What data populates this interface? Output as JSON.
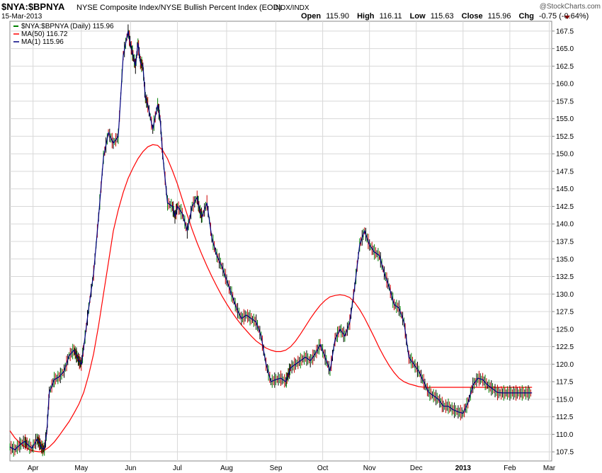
{
  "header": {
    "symbol": "$NYA:$BPNYA",
    "description": "NYSE Composite Index/NYSE Bullish Percent Index (EOD)",
    "exchange": "INDX/INDX",
    "date": "15-Mar-2013",
    "watermark": "@StockCharts.com",
    "ohlc": {
      "open_label": "Open",
      "open": "115.90",
      "high_label": "High",
      "high": "116.11",
      "low_label": "Low",
      "low": "115.63",
      "close_label": "Close",
      "close": "115.96",
      "chg_label": "Chg",
      "chg": "-0.75 (-0.64%)"
    }
  },
  "legend": [
    {
      "text": "$NYA:$BPNYA (Daily) 115.96",
      "color": "#008000"
    },
    {
      "text": "MA(50) 116.72",
      "color": "#ff0000"
    },
    {
      "text": "MA(1) 115.96",
      "color": "#000080"
    }
  ],
  "chart_data": {
    "type": "line",
    "ylim": [
      106.2,
      168.9
    ],
    "xlim": [
      0,
      11.0
    ],
    "y_ticks": [
      107.5,
      110.0,
      112.5,
      115.0,
      117.5,
      120.0,
      122.5,
      125.0,
      127.5,
      130.0,
      132.5,
      135.0,
      137.5,
      140.0,
      142.5,
      145.0,
      147.5,
      150.0,
      152.5,
      155.0,
      157.5,
      160.0,
      162.5,
      165.0,
      167.5
    ],
    "x_ticks": [
      {
        "label": "Apr",
        "x": 0.47,
        "bold": false
      },
      {
        "label": "May",
        "x": 1.45,
        "bold": false
      },
      {
        "label": "Jun",
        "x": 2.45,
        "bold": false
      },
      {
        "label": "Jul",
        "x": 3.4,
        "bold": false
      },
      {
        "label": "Aug",
        "x": 4.4,
        "bold": false
      },
      {
        "label": "Sep",
        "x": 5.4,
        "bold": false
      },
      {
        "label": "Oct",
        "x": 6.35,
        "bold": false
      },
      {
        "label": "Nov",
        "x": 7.3,
        "bold": false
      },
      {
        "label": "Dec",
        "x": 8.25,
        "bold": false
      },
      {
        "label": "2013",
        "x": 9.2,
        "bold": true
      },
      {
        "label": "Feb",
        "x": 10.15,
        "bold": false
      },
      {
        "label": "Mar",
        "x": 10.95,
        "bold": false
      }
    ],
    "series": [
      {
        "name": "MA(1)",
        "color": "#000080",
        "x": [
          0,
          0.1,
          0.2,
          0.3,
          0.35,
          0.45,
          0.55,
          0.6,
          0.65,
          0.7,
          0.75,
          0.8,
          0.9,
          1.0,
          1.1,
          1.2,
          1.3,
          1.35,
          1.4,
          1.45,
          1.5,
          1.6,
          1.7,
          1.8,
          1.9,
          2.0,
          2.1,
          2.2,
          2.3,
          2.4,
          2.45,
          2.5,
          2.55,
          2.6,
          2.65,
          2.7,
          2.75,
          2.8,
          2.9,
          3.0,
          3.05,
          3.1,
          3.2,
          3.3,
          3.35,
          3.4,
          3.5,
          3.6,
          3.7,
          3.8,
          3.85,
          3.9,
          4.0,
          4.1,
          4.2,
          4.3,
          4.4,
          4.5,
          4.6,
          4.7,
          4.8,
          4.9,
          5.0,
          5.1,
          5.2,
          5.3,
          5.4,
          5.5,
          5.6,
          5.65,
          5.7,
          5.8,
          5.9,
          6.0,
          6.1,
          6.2,
          6.3,
          6.4,
          6.5,
          6.6,
          6.7,
          6.8,
          6.9,
          7.0,
          7.1,
          7.2,
          7.3,
          7.4,
          7.5,
          7.6,
          7.7,
          7.8,
          7.9,
          8.0,
          8.1,
          8.2,
          8.3,
          8.4,
          8.5,
          8.6,
          8.7,
          8.8,
          8.9,
          9.0,
          9.1,
          9.2,
          9.3,
          9.4,
          9.5,
          9.6,
          9.7,
          9.8,
          9.9,
          10.0,
          10.1,
          10.2,
          10.3,
          10.4,
          10.5,
          10.6,
          10.7,
          10.8,
          10.9,
          11.0
        ],
        "y": [
          108.2,
          107.8,
          108.5,
          109.0,
          108.6,
          108.0,
          109.3,
          108.8,
          108.0,
          107.9,
          110.5,
          116.0,
          117.8,
          118.2,
          119.0,
          121.2,
          122.0,
          121.3,
          120.5,
          120.0,
          122.5,
          128.0,
          133.0,
          141.0,
          149.5,
          153.0,
          151.5,
          152.5,
          164.0,
          167.5,
          165.5,
          164.0,
          162.5,
          165.8,
          163.0,
          162.5,
          158.0,
          157.0,
          153.5,
          157.0,
          155.0,
          150.0,
          143.0,
          142.5,
          141.0,
          142.5,
          141.5,
          139.0,
          142.5,
          143.8,
          142.0,
          141.0,
          143.0,
          138.0,
          135.5,
          134.0,
          132.0,
          130.0,
          128.0,
          126.5,
          127.0,
          126.5,
          126.0,
          124.0,
          120.0,
          117.5,
          117.8,
          118.0,
          117.5,
          118.5,
          119.5,
          120.0,
          120.5,
          121.0,
          120.5,
          121.5,
          122.8,
          121.0,
          119.0,
          123.5,
          125.0,
          124.0,
          126.0,
          131.0,
          137.0,
          139.0,
          137.0,
          136.0,
          135.5,
          133.0,
          131.0,
          128.5,
          128.0,
          126.0,
          121.0,
          120.0,
          119.0,
          117.5,
          116.0,
          115.5,
          115.0,
          114.0,
          114.0,
          113.5,
          113.2,
          113.0,
          114.5,
          117.0,
          118.0,
          117.8,
          117.0,
          116.5,
          115.96,
          115.9,
          115.9,
          115.9,
          115.9,
          115.9,
          115.9,
          115.9,
          115.9,
          115.9,
          115.9,
          115.9
        ],
        "x_end": 10.62
      },
      {
        "name": "MA(50)",
        "color": "#ff0000",
        "x": [
          0,
          0.1,
          0.2,
          0.3,
          0.4,
          0.5,
          0.6,
          0.7,
          0.8,
          0.9,
          1.0,
          1.1,
          1.2,
          1.3,
          1.4,
          1.5,
          1.6,
          1.7,
          1.8,
          1.9,
          2.0,
          2.1,
          2.2,
          2.3,
          2.4,
          2.5,
          2.6,
          2.7,
          2.8,
          2.9,
          3.0,
          3.1,
          3.2,
          3.3,
          3.4,
          3.5,
          3.6,
          3.7,
          3.8,
          3.9,
          4.0,
          4.1,
          4.2,
          4.3,
          4.4,
          4.5,
          4.6,
          4.7,
          4.8,
          4.9,
          5.0,
          5.1,
          5.2,
          5.3,
          5.4,
          5.5,
          5.6,
          5.7,
          5.8,
          5.9,
          6.0,
          6.1,
          6.2,
          6.3,
          6.4,
          6.5,
          6.6,
          6.7,
          6.8,
          6.9,
          7.0,
          7.1,
          7.2,
          7.3,
          7.4,
          7.5,
          7.6,
          7.7,
          7.8,
          7.9,
          8.0,
          8.1,
          8.2,
          8.3,
          8.4,
          8.5,
          8.6,
          8.7,
          8.8,
          8.9,
          9.0,
          9.1,
          9.2,
          9.3,
          9.4,
          9.5,
          9.6,
          9.7,
          9.8,
          9.9,
          10.0,
          10.1,
          10.2,
          10.3,
          10.4,
          10.5,
          10.6
        ],
        "y": [
          110.5,
          109.5,
          108.8,
          108.2,
          107.8,
          107.6,
          107.5,
          107.7,
          108.2,
          108.9,
          109.8,
          110.8,
          111.8,
          113.0,
          114.3,
          116.0,
          118.5,
          121.5,
          125.5,
          130.0,
          134.5,
          139.0,
          142.0,
          144.5,
          146.5,
          148.0,
          149.3,
          150.3,
          151.0,
          151.3,
          151.2,
          150.5,
          149.3,
          147.6,
          145.7,
          143.5,
          141.3,
          139.2,
          137.3,
          135.6,
          134.0,
          132.5,
          131.1,
          129.8,
          128.6,
          127.5,
          126.5,
          125.6,
          124.8,
          124.0,
          123.3,
          122.8,
          122.3,
          122.0,
          121.8,
          121.8,
          122.0,
          122.5,
          123.3,
          124.3,
          125.4,
          126.5,
          127.5,
          128.4,
          129.1,
          129.6,
          129.8,
          129.9,
          129.8,
          129.5,
          128.8,
          127.8,
          126.6,
          125.2,
          123.8,
          122.3,
          121.0,
          119.8,
          118.8,
          118.0,
          117.5,
          117.2,
          117.0,
          116.8,
          116.72,
          116.7,
          116.7,
          116.7,
          116.7,
          116.7,
          116.7,
          116.7,
          116.7,
          116.7,
          116.7,
          116.7,
          116.7,
          116.7,
          116.7,
          116.7,
          116.7,
          116.7,
          116.7,
          116.7,
          116.7,
          116.7,
          116.7
        ]
      }
    ]
  }
}
